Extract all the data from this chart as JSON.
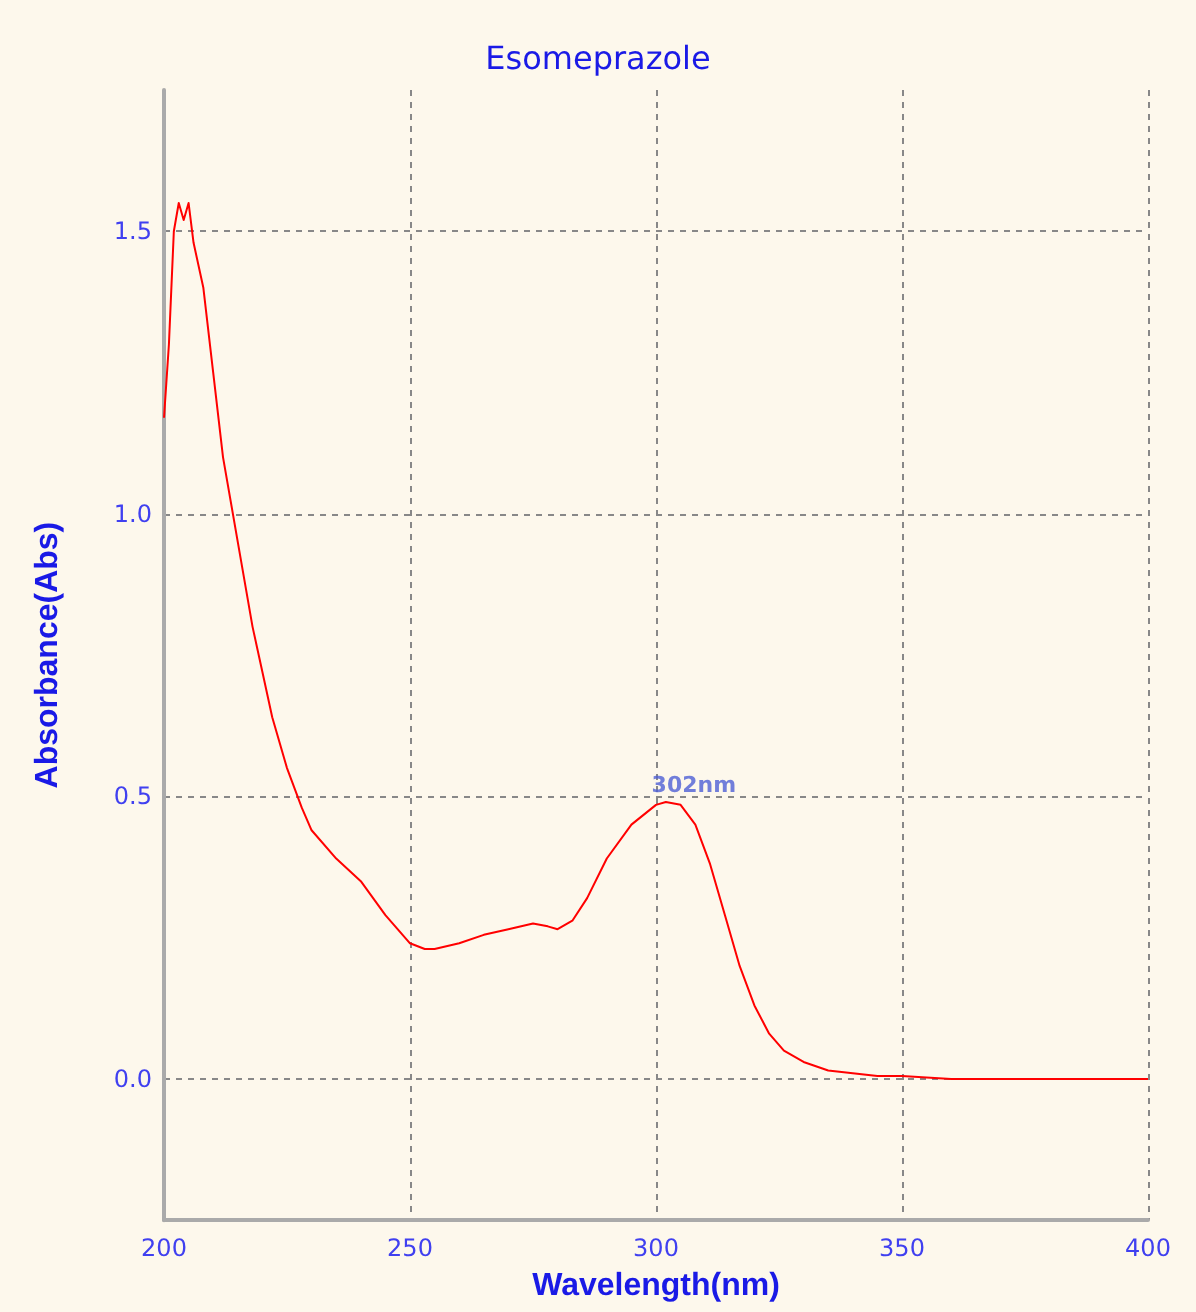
{
  "chart_data": {
    "type": "line",
    "title": "Esomeprazole",
    "xlabel": "Wavelength(nm)",
    "ylabel": "Absorbance(Abs)",
    "x": [
      200,
      201,
      202,
      203,
      204,
      205,
      206,
      208,
      210,
      212,
      215,
      218,
      220,
      222,
      225,
      228,
      230,
      235,
      240,
      245,
      250,
      253,
      255,
      260,
      265,
      270,
      275,
      278,
      280,
      283,
      286,
      290,
      295,
      300,
      302,
      305,
      308,
      311,
      314,
      317,
      320,
      323,
      326,
      330,
      335,
      340,
      345,
      350,
      360,
      370,
      380,
      390,
      400
    ],
    "series": [
      {
        "color": "#ff0000",
        "values": [
          1.17,
          1.3,
          1.5,
          1.55,
          1.52,
          1.55,
          1.48,
          1.4,
          1.25,
          1.1,
          0.95,
          0.8,
          0.72,
          0.64,
          0.55,
          0.48,
          0.44,
          0.39,
          0.35,
          0.29,
          0.24,
          0.23,
          0.23,
          0.24,
          0.255,
          0.265,
          0.275,
          0.27,
          0.265,
          0.28,
          0.32,
          0.39,
          0.45,
          0.485,
          0.49,
          0.485,
          0.45,
          0.38,
          0.29,
          0.2,
          0.13,
          0.08,
          0.05,
          0.03,
          0.015,
          0.01,
          0.005,
          0.005,
          0,
          0,
          0,
          0,
          0
        ]
      }
    ],
    "xlim": [
      200,
      400
    ],
    "xticks": [
      200,
      250,
      300,
      350,
      400
    ],
    "ylim": [
      -0.25,
      1.75
    ],
    "yticks": [
      {
        "value": 0,
        "label": "0.0"
      },
      {
        "value": 0.5,
        "label": "0.5"
      },
      {
        "value": 1,
        "label": "1.0"
      },
      {
        "value": 1.5,
        "label": "1.5"
      }
    ],
    "grid": true,
    "marker": "none",
    "line_style": "solid",
    "annotations": [
      {
        "text": "302nm",
        "x": 302,
        "y": 0.49
      }
    ]
  }
}
